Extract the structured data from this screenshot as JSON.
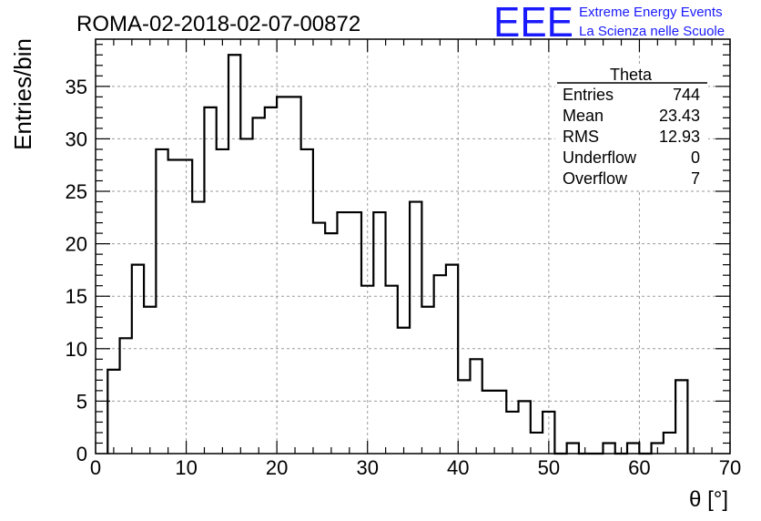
{
  "chart_data": {
    "type": "bar",
    "title": "ROMA-02-2018-02-07-00872",
    "xlabel": "θ [°]",
    "ylabel": "Entries/bin",
    "xlim": [
      0,
      70
    ],
    "ylim": [
      0,
      39.5
    ],
    "grid": true,
    "bin_width": 1.333,
    "bins_x_start": 1.3333,
    "values": [
      8,
      11,
      18,
      14,
      29,
      28,
      28,
      24,
      33,
      29,
      38,
      30,
      32,
      33,
      34,
      34,
      29,
      22,
      21,
      23,
      23,
      16,
      23,
      16,
      12,
      24,
      14,
      17,
      18,
      7,
      9,
      6,
      6,
      4,
      5,
      2,
      4,
      0,
      1,
      0,
      0,
      1,
      0,
      1,
      0,
      1,
      2,
      7
    ],
    "x_ticks": [
      0,
      10,
      20,
      30,
      40,
      50,
      60,
      70
    ],
    "y_ticks": [
      0,
      5,
      10,
      15,
      20,
      25,
      30,
      35
    ],
    "stats_box": {
      "name": "Theta",
      "rows": [
        {
          "label": "Entries",
          "value": "744"
        },
        {
          "label": "Mean",
          "value": "23.43"
        },
        {
          "label": "RMS",
          "value": "12.93"
        },
        {
          "label": "Underflow",
          "value": "0"
        },
        {
          "label": "Overflow",
          "value": "7"
        }
      ]
    }
  },
  "logo": {
    "mark": "EEE",
    "line1": "Extreme Energy Events",
    "line2": "La Scienza nelle Scuole",
    "color": "#1a1aff"
  }
}
